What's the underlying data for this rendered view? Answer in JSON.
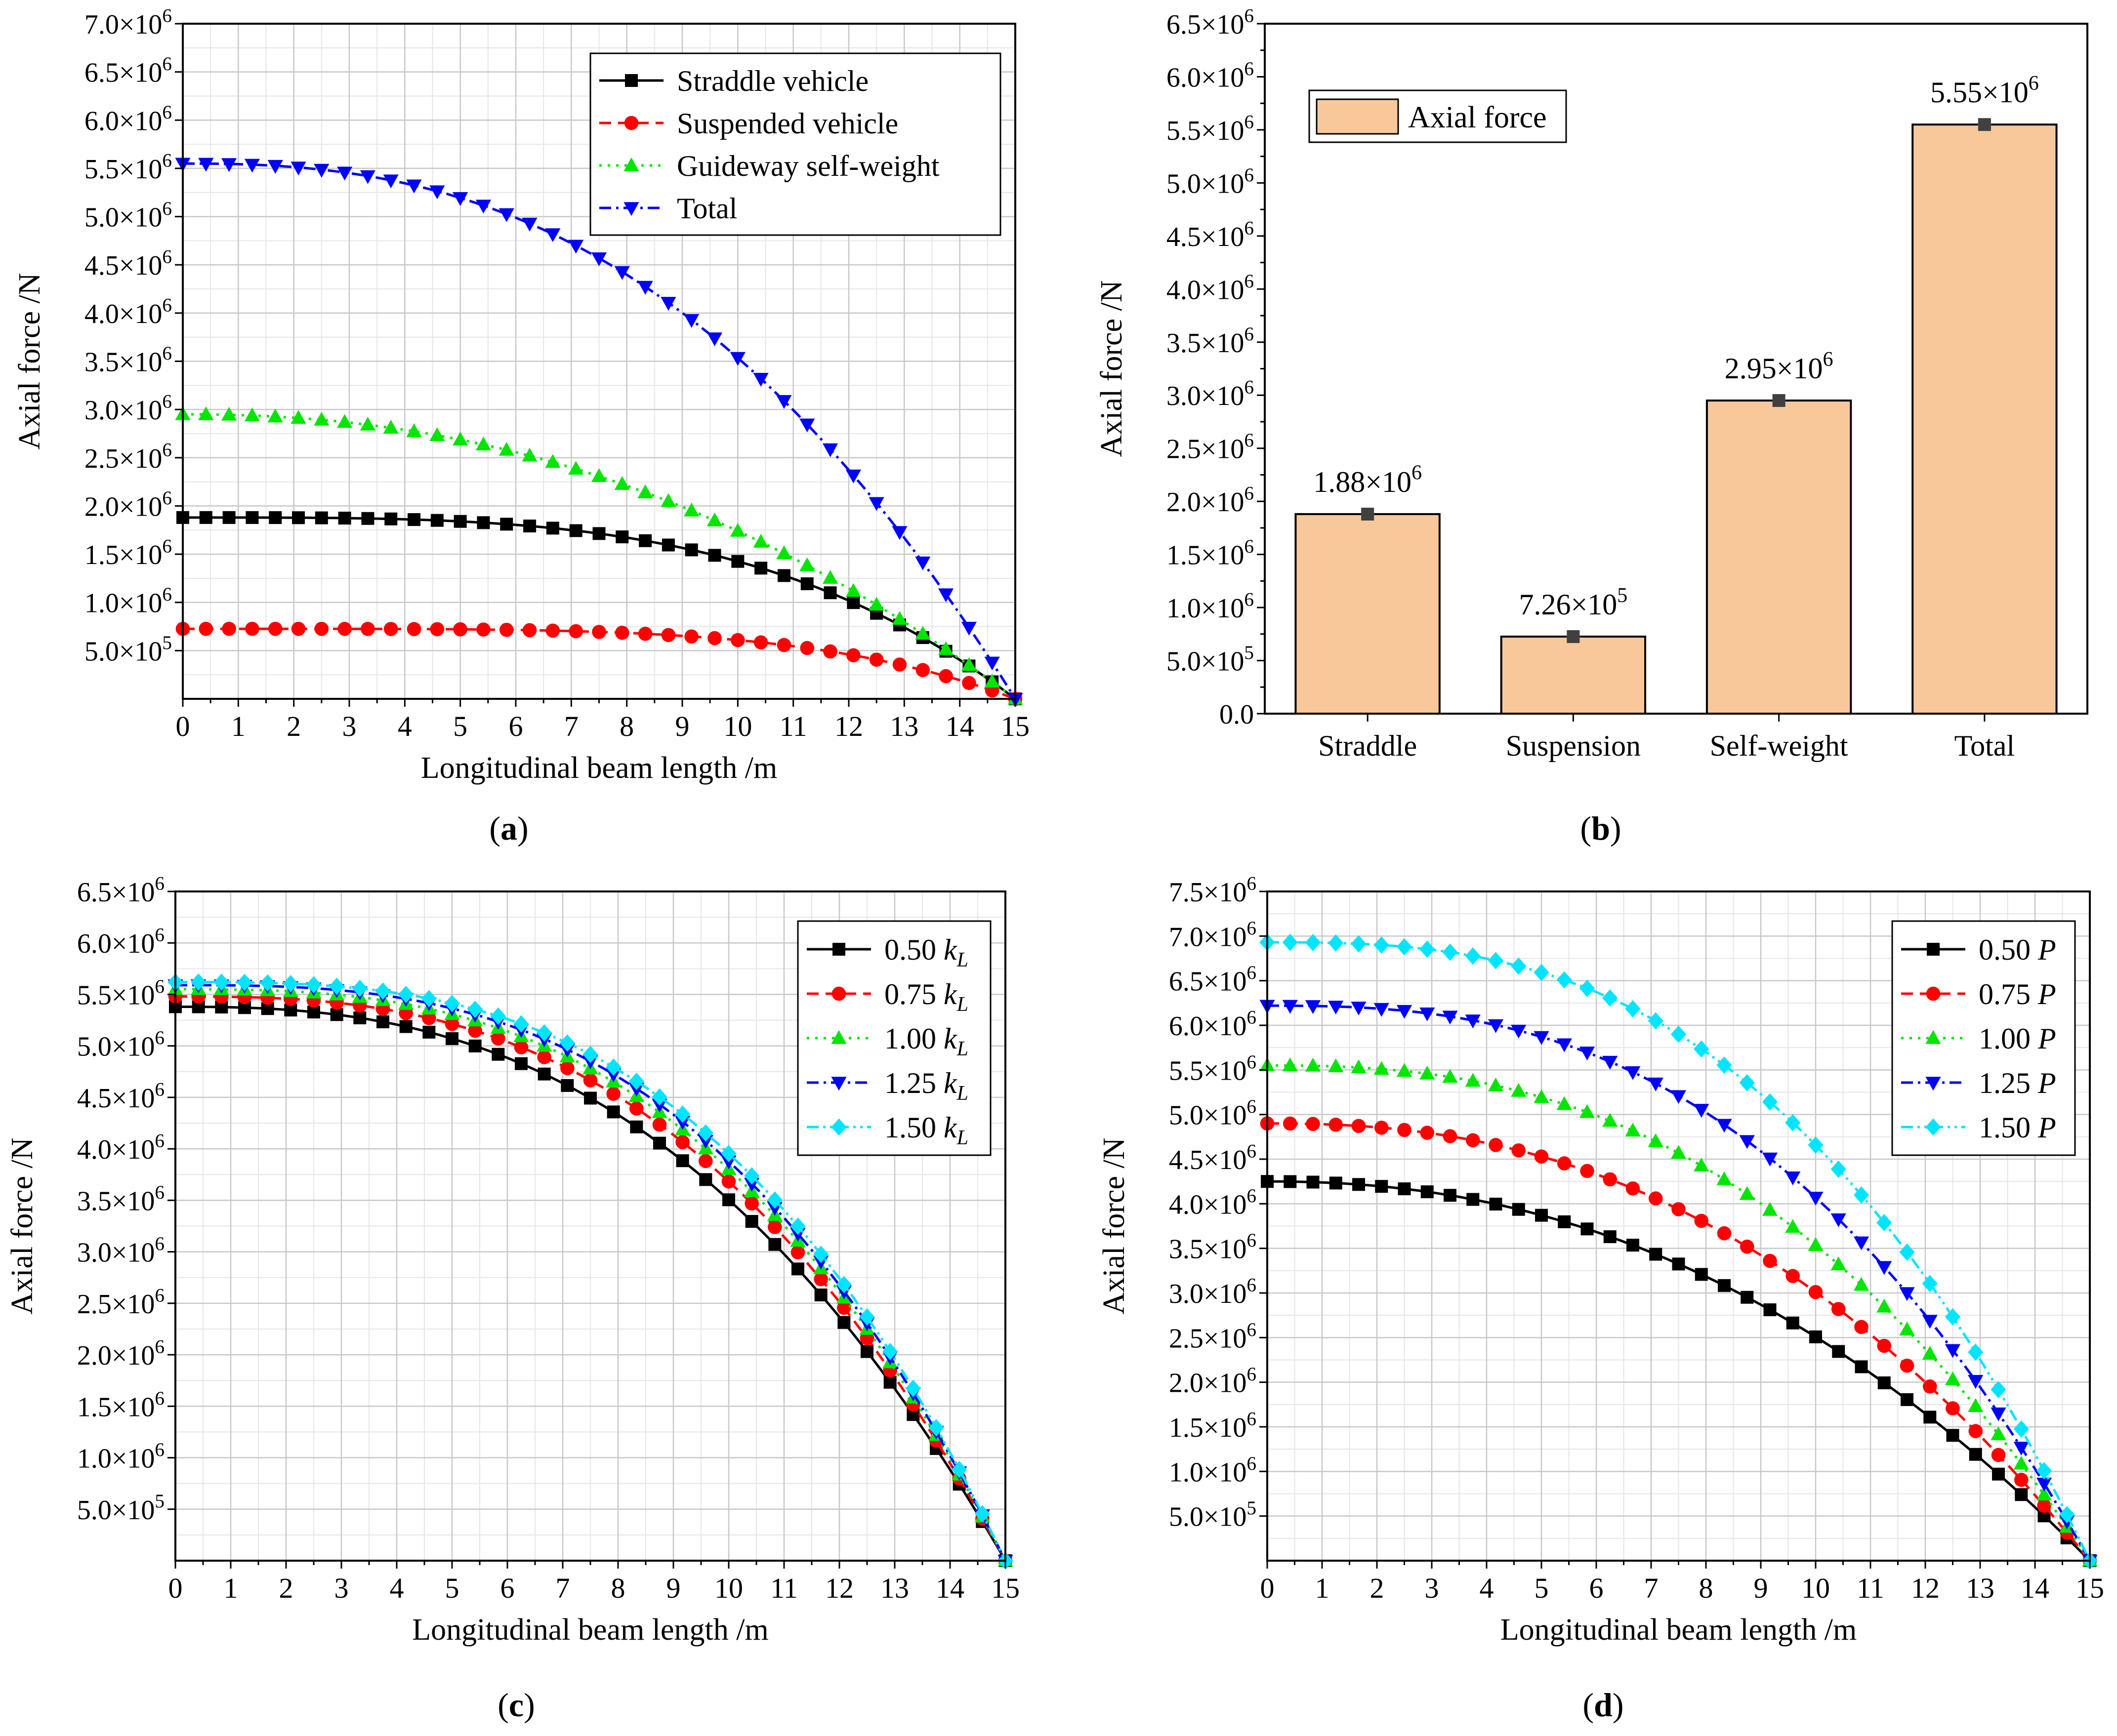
{
  "chart_data": [
    {
      "panel_label": "a",
      "type": "line",
      "xlabel": "Longitudinal beam length /m",
      "ylabel": "Axial force /N",
      "xlim": [
        0,
        15
      ],
      "ylim": [
        0,
        7000000
      ],
      "xticks": [
        0,
        1,
        2,
        3,
        4,
        5,
        6,
        7,
        8,
        9,
        10,
        11,
        12,
        13,
        14,
        15
      ],
      "yticks": [
        500000,
        1000000,
        1500000,
        2000000,
        2500000,
        3000000,
        3500000,
        4000000,
        4500000,
        5000000,
        5500000,
        6000000,
        6500000,
        7000000
      ],
      "ytick_labels": [
        "5.0×10^5",
        "1.0×10^6",
        "1.5×10^6",
        "2.0×10^6",
        "2.5×10^6",
        "3.0×10^6",
        "3.5×10^6",
        "4.0×10^6",
        "4.5×10^6",
        "5.0×10^6",
        "5.5×10^6",
        "6.0×10^6",
        "6.5×10^6",
        "7.0×10^6"
      ],
      "grid": true,
      "legend_position": "top-right",
      "series": [
        {
          "name": "Straddle vehicle",
          "color": "#000000",
          "marker": "square",
          "dash": "solid",
          "shape": "y0*(1-(x/15)^3.5)",
          "y0": 1880000
        },
        {
          "name": "Suspended vehicle",
          "color": "#ff0000",
          "marker": "circle",
          "dash": "dashed",
          "shape": "y0*(1-(x/15)^4.5)",
          "y0": 726000
        },
        {
          "name": "Guideway self-weight",
          "color": "#00e600",
          "marker": "triangle-up",
          "dash": "dotted",
          "shape": "y0*(1-(x/15)^2.2)",
          "y0": 2950000
        },
        {
          "name": "Total",
          "color": "#0000ff",
          "marker": "triangle-down",
          "dash": "dashdot",
          "shape": "y0*(1-(x/15)^2.5)",
          "y0": 5550000
        }
      ]
    },
    {
      "panel_label": "b",
      "type": "bar",
      "xlabel": "",
      "ylabel": "Axial force /N",
      "ylim": [
        0,
        6500000
      ],
      "yticks": [
        0,
        500000,
        1000000,
        1500000,
        2000000,
        2500000,
        3000000,
        3500000,
        4000000,
        4500000,
        5000000,
        5500000,
        6000000,
        6500000
      ],
      "ytick_labels": [
        "0.0",
        "5.0×10^5",
        "1.0×10^6",
        "1.5×10^6",
        "2.0×10^6",
        "2.5×10^6",
        "3.0×10^6",
        "3.5×10^6",
        "4.0×10^6",
        "4.5×10^6",
        "5.0×10^6",
        "5.5×10^6",
        "6.0×10^6",
        "6.5×10^6"
      ],
      "categories": [
        "Straddle",
        "Suspension",
        "Self-weight",
        "Total"
      ],
      "values": [
        1880000,
        726000,
        2950000,
        5550000
      ],
      "data_labels": [
        "1.88×10^6",
        "7.26×10^5",
        "2.95×10^6",
        "5.55×10^6"
      ],
      "legend_entry": "Axial force",
      "legend_position": "top-left",
      "bar_color": "#f8c89a",
      "grid": false
    },
    {
      "panel_label": "c",
      "type": "line",
      "xlabel": "Longitudinal beam length /m",
      "ylabel": "Axial force /N",
      "xlim": [
        0,
        15
      ],
      "ylim": [
        0,
        6500000
      ],
      "xticks": [
        0,
        1,
        2,
        3,
        4,
        5,
        6,
        7,
        8,
        9,
        10,
        11,
        12,
        13,
        14,
        15
      ],
      "yticks": [
        500000,
        1000000,
        1500000,
        2000000,
        2500000,
        3000000,
        3500000,
        4000000,
        4500000,
        5000000,
        5500000,
        6000000,
        6500000
      ],
      "ytick_labels": [
        "5.0×10^5",
        "1.0×10^6",
        "1.5×10^6",
        "2.0×10^6",
        "2.5×10^6",
        "3.0×10^6",
        "3.5×10^6",
        "4.0×10^6",
        "4.5×10^6",
        "5.0×10^6",
        "5.5×10^6",
        "6.0×10^6",
        "6.5×10^6"
      ],
      "grid": true,
      "legend_position": "top-right",
      "series": [
        {
          "name": "0.50 kL",
          "legend_prefix": "0.50 ",
          "legend_italic": "k",
          "legend_sub": "L",
          "color": "#000000",
          "marker": "square",
          "dash": "solid",
          "shape": "y0*(1-(x/15)^2.6)",
          "y0": 5380000
        },
        {
          "name": "0.75 kL",
          "legend_prefix": "0.75 ",
          "legend_italic": "k",
          "legend_sub": "L",
          "color": "#ff0000",
          "marker": "circle",
          "dash": "dashed",
          "shape": "y0*(1-(x/15)^2.75)",
          "y0": 5480000
        },
        {
          "name": "1.00 kL",
          "legend_prefix": "1.00 ",
          "legend_italic": "k",
          "legend_sub": "L",
          "color": "#00e600",
          "marker": "triangle-up",
          "dash": "dotted",
          "shape": "y0*(1-(x/15)^2.85)",
          "y0": 5550000
        },
        {
          "name": "1.25 kL",
          "legend_prefix": "1.25 ",
          "legend_italic": "k",
          "legend_sub": "L",
          "color": "#0000ff",
          "marker": "triangle-down",
          "dash": "dashdot",
          "shape": "y0*(1-(x/15)^2.92)",
          "y0": 5590000
        },
        {
          "name": "1.50 kL",
          "legend_prefix": "1.50 ",
          "legend_italic": "k",
          "legend_sub": "L",
          "color": "#00e5ff",
          "marker": "diamond",
          "dash": "dashdotdot",
          "shape": "y0*(1-(x/15)^3.0)",
          "y0": 5620000
        }
      ]
    },
    {
      "panel_label": "d",
      "type": "line",
      "xlabel": "Longitudinal beam length /m",
      "ylabel": "Axial force /N",
      "xlim": [
        0,
        15
      ],
      "ylim": [
        0,
        7500000
      ],
      "xticks": [
        0,
        1,
        2,
        3,
        4,
        5,
        6,
        7,
        8,
        9,
        10,
        11,
        12,
        13,
        14,
        15
      ],
      "yticks": [
        500000,
        1000000,
        1500000,
        2000000,
        2500000,
        3000000,
        3500000,
        4000000,
        4500000,
        5000000,
        5500000,
        6000000,
        6500000,
        7000000,
        7500000
      ],
      "ytick_labels": [
        "5.0×10^5",
        "1.0×10^6",
        "1.5×10^6",
        "2.0×10^6",
        "2.5×10^6",
        "3.0×10^6",
        "3.5×10^6",
        "4.0×10^6",
        "4.5×10^6",
        "5.0×10^6",
        "5.5×10^6",
        "6.0×10^6",
        "6.5×10^6",
        "7.0×10^6",
        "7.5×10^6"
      ],
      "grid": true,
      "legend_position": "top-right",
      "series": [
        {
          "name": "0.50 P",
          "legend_prefix": "0.50 ",
          "legend_italic": "P",
          "color": "#000000",
          "marker": "square",
          "dash": "solid",
          "shape": "y0*(1-(x/15)^2.2)",
          "y0": 4250000
        },
        {
          "name": "0.75 P",
          "legend_prefix": "0.75 ",
          "legend_italic": "P",
          "color": "#ff0000",
          "marker": "circle",
          "dash": "dashed",
          "shape": "y0*(1-(x/15)^2.35)",
          "y0": 4900000
        },
        {
          "name": "1.00 P",
          "legend_prefix": "1.00 ",
          "legend_italic": "P",
          "color": "#00e600",
          "marker": "triangle-up",
          "dash": "dotted",
          "shape": "y0*(1-(x/15)^2.5)",
          "y0": 5550000
        },
        {
          "name": "1.25 P",
          "legend_prefix": "1.25 ",
          "legend_italic": "P",
          "color": "#0000ff",
          "marker": "triangle-down",
          "dash": "dashdot",
          "shape": "y0*(1-(x/15)^2.62)",
          "y0": 6220000
        },
        {
          "name": "1.50 P",
          "legend_prefix": "1.50 ",
          "legend_italic": "P",
          "color": "#00e5ff",
          "marker": "diamond",
          "dash": "dashdotdot",
          "shape": "y0*(1-(x/15)^2.75)",
          "y0": 6930000
        }
      ]
    }
  ]
}
